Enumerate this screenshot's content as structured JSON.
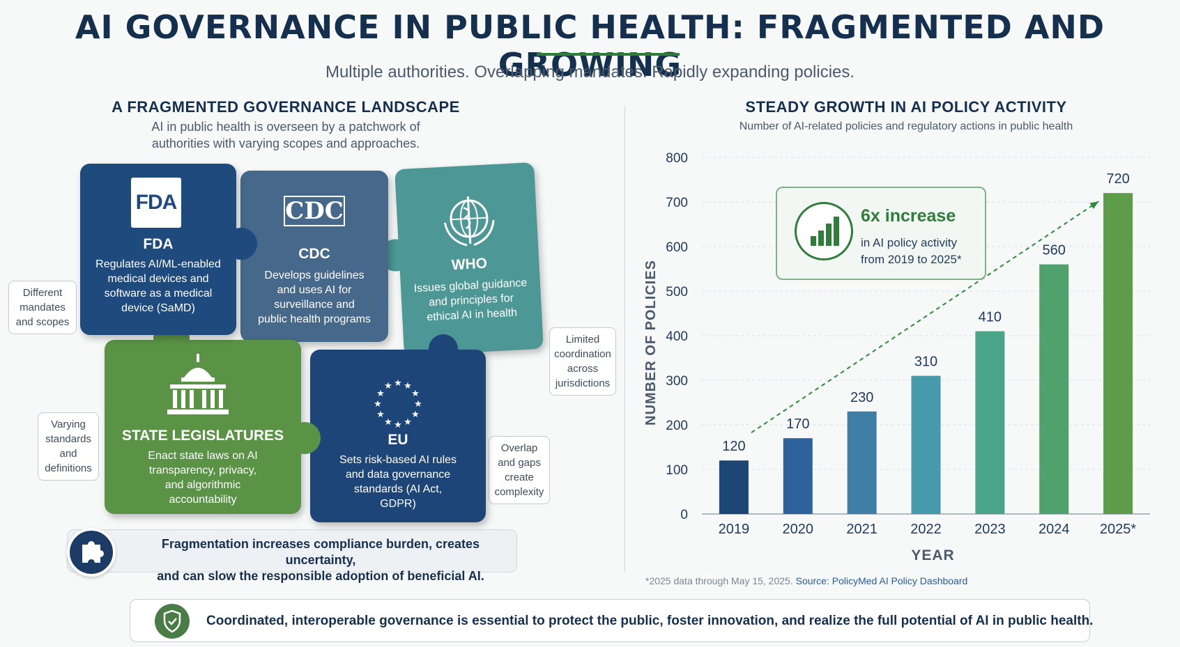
{
  "header": {
    "title": "AI GOVERNANCE IN PUBLIC HEALTH: FRAGMENTED AND GROWING",
    "subtitle": "Multiple authorities. Overlapping mandates. Rapidly expanding policies."
  },
  "left": {
    "heading": "A FRAGMENTED GOVERNANCE LANDSCAPE",
    "subheading_line1": "AI in public health is overseen by a patchwork of",
    "subheading_line2": "authorities with varying scopes and approaches.",
    "pieces": [
      {
        "name": "FDA",
        "logo": "FDA",
        "desc": [
          "Regulates AI/ML-enabled",
          "medical devices and",
          "software as a medical",
          "device (SaMD)"
        ],
        "color": "#1e4a7e"
      },
      {
        "name": "CDC",
        "logo": "CDC",
        "desc": [
          "Develops guidelines",
          "and uses AI for",
          "surveillance and",
          "public health programs"
        ],
        "color": "#46688a"
      },
      {
        "name": "WHO",
        "logo": "who-emblem-icon",
        "desc": [
          "Issues global guidance",
          "and principles for",
          "ethical AI in health"
        ],
        "color": "#4d9896"
      },
      {
        "name": "STATE LEGISLATURES",
        "logo": "capitol-building-icon",
        "desc": [
          "Enact state laws on AI",
          "transparency, privacy,",
          "and algorithmic",
          "accountability"
        ],
        "color": "#5a9246"
      },
      {
        "name": "EU",
        "logo": "eu-stars-icon",
        "desc": [
          "Sets risk-based AI rules",
          "and data governance",
          "standards (AI Act,",
          "GDPR)"
        ],
        "color": "#1e4577"
      }
    ],
    "notes": [
      {
        "lines": [
          "Different",
          "mandates",
          "and scopes"
        ]
      },
      {
        "lines": [
          "Limited",
          "coordination",
          "across",
          "jurisdictions"
        ]
      },
      {
        "lines": [
          "Varying",
          "standards",
          "and",
          "definitions"
        ]
      },
      {
        "lines": [
          "Overlap",
          "and gaps",
          "create",
          "complexity"
        ]
      }
    ],
    "callout_line1": "Fragmentation increases compliance burden, creates uncertainty,",
    "callout_line2": "and can slow the responsible adoption of beneficial AI.",
    "callout_icon": "puzzle-piece-icon"
  },
  "right": {
    "heading": "STEADY GROWTH IN AI POLICY ACTIVITY",
    "subheading": "Number of AI-related policies and regulatory actions in public health",
    "stat_title": "6x increase",
    "stat_line1": "in AI policy activity",
    "stat_line2": "from 2019 to 2025*",
    "stat_icon": "bar-chart-icon",
    "footnote": "*2025 data through May 15, 2025.",
    "source": "Source: PolicyMed AI Policy Dashboard"
  },
  "chart_data": {
    "type": "bar",
    "categories": [
      "2019",
      "2020",
      "2021",
      "2022",
      "2023",
      "2024",
      "2025*"
    ],
    "values": [
      120,
      170,
      230,
      310,
      410,
      560,
      720
    ],
    "colors": [
      "#1d4675",
      "#2f619a",
      "#3f7fa6",
      "#469aac",
      "#4aa488",
      "#4fa26b",
      "#5e9c4a"
    ],
    "xlabel": "YEAR",
    "ylabel": "NUMBER OF POLICIES",
    "ylim": [
      0,
      800
    ],
    "yticks": [
      0,
      100,
      200,
      300,
      400,
      500,
      600,
      700,
      800
    ],
    "grid": true,
    "trend_arrow": true
  },
  "footer": {
    "text": "Coordinated, interoperable governance is essential to protect the public, foster innovation, and realize the full potential of AI in public health.",
    "icon": "shield-check-icon"
  },
  "colors": {
    "navy": "#15304f",
    "green": "#2e7d3a"
  }
}
